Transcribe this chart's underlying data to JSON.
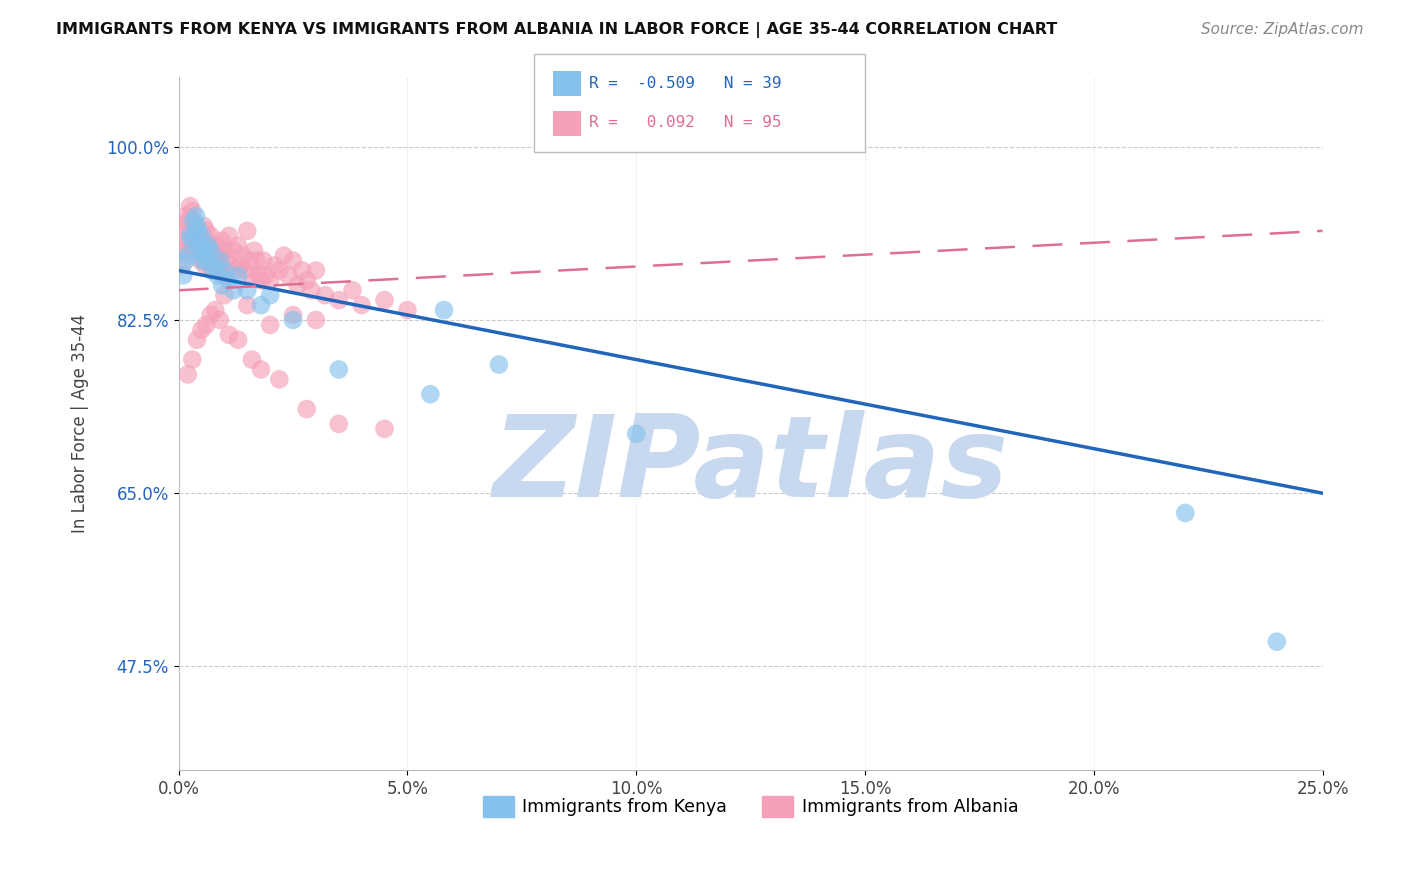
{
  "title": "IMMIGRANTS FROM KENYA VS IMMIGRANTS FROM ALBANIA IN LABOR FORCE | AGE 35-44 CORRELATION CHART",
  "source": "Source: ZipAtlas.com",
  "ylabel": "In Labor Force | Age 35-44",
  "x_tick_labels": [
    "0.0%",
    "5.0%",
    "10.0%",
    "15.0%",
    "20.0%",
    "25.0%"
  ],
  "x_tick_values": [
    0.0,
    5.0,
    10.0,
    15.0,
    20.0,
    25.0
  ],
  "y_tick_labels": [
    "47.5%",
    "65.0%",
    "82.5%",
    "100.0%"
  ],
  "y_tick_values": [
    47.5,
    65.0,
    82.5,
    100.0
  ],
  "xlim": [
    0.0,
    25.0
  ],
  "ylim": [
    37.0,
    107.0
  ],
  "kenya_color": "#85C1EC",
  "albania_color": "#F5A0B8",
  "kenya_line_color": "#2266BB",
  "albania_line_color": "#DD7090",
  "watermark_text": "ZIPatlas",
  "watermark_color": "#C8D8EE",
  "kenya_line_x0": 0.0,
  "kenya_line_y0": 87.5,
  "kenya_line_x1": 25.0,
  "kenya_line_y1": 65.0,
  "albania_line_x0": 0.0,
  "albania_line_y0": 85.5,
  "albania_line_x1": 25.0,
  "albania_line_y1": 91.5,
  "kenya_scatter_x": [
    0.1,
    0.15,
    0.2,
    0.25,
    0.3,
    0.32,
    0.35,
    0.38,
    0.4,
    0.42,
    0.45,
    0.48,
    0.5,
    0.52,
    0.55,
    0.58,
    0.6,
    0.65,
    0.7,
    0.75,
    0.8,
    0.85,
    0.9,
    0.95,
    1.0,
    1.1,
    1.2,
    1.3,
    1.5,
    1.8,
    2.0,
    2.5,
    3.5,
    5.5,
    5.8,
    7.0,
    10.0,
    22.0,
    24.0
  ],
  "kenya_scatter_y": [
    87.0,
    88.5,
    89.0,
    91.0,
    90.5,
    92.5,
    91.0,
    93.0,
    92.0,
    91.5,
    90.0,
    89.5,
    91.0,
    88.5,
    90.0,
    89.0,
    88.5,
    90.0,
    89.5,
    87.5,
    88.0,
    87.0,
    88.5,
    86.0,
    87.5,
    86.5,
    85.5,
    87.0,
    85.5,
    84.0,
    85.0,
    82.5,
    77.5,
    75.0,
    83.5,
    78.0,
    71.0,
    63.0,
    50.0
  ],
  "albania_scatter_x": [
    0.08,
    0.1,
    0.12,
    0.14,
    0.16,
    0.18,
    0.2,
    0.22,
    0.25,
    0.28,
    0.3,
    0.32,
    0.35,
    0.38,
    0.4,
    0.42,
    0.45,
    0.48,
    0.5,
    0.52,
    0.55,
    0.58,
    0.6,
    0.63,
    0.65,
    0.68,
    0.7,
    0.72,
    0.75,
    0.78,
    0.8,
    0.82,
    0.85,
    0.88,
    0.9,
    0.92,
    0.95,
    0.98,
    1.0,
    1.05,
    1.1,
    1.15,
    1.2,
    1.25,
    1.3,
    1.35,
    1.4,
    1.45,
    1.5,
    1.55,
    1.6,
    1.65,
    1.7,
    1.75,
    1.8,
    1.85,
    1.9,
    2.0,
    2.1,
    2.2,
    2.3,
    2.4,
    2.5,
    2.6,
    2.7,
    2.8,
    2.9,
    3.0,
    3.2,
    3.5,
    3.8,
    4.0,
    4.5,
    5.0,
    2.0,
    2.5,
    3.0,
    1.5,
    1.0,
    0.8,
    0.6,
    0.5,
    0.4,
    0.3,
    0.2,
    0.7,
    0.9,
    1.1,
    1.3,
    1.6,
    1.8,
    2.2,
    2.8,
    3.5,
    4.5
  ],
  "albania_scatter_y": [
    88.0,
    92.0,
    90.0,
    91.5,
    93.0,
    89.5,
    92.5,
    90.5,
    94.0,
    91.0,
    93.5,
    90.0,
    92.0,
    89.5,
    91.5,
    90.0,
    91.0,
    88.5,
    90.5,
    89.0,
    92.0,
    88.0,
    91.5,
    90.5,
    89.0,
    88.5,
    91.0,
    87.5,
    90.0,
    89.5,
    88.0,
    90.0,
    89.0,
    87.5,
    89.5,
    88.0,
    90.5,
    87.0,
    89.5,
    88.5,
    91.0,
    88.0,
    89.5,
    87.5,
    90.0,
    88.0,
    89.0,
    87.5,
    91.5,
    88.5,
    87.0,
    89.5,
    88.5,
    87.0,
    86.5,
    88.5,
    87.0,
    86.5,
    88.0,
    87.5,
    89.0,
    87.0,
    88.5,
    86.0,
    87.5,
    86.5,
    85.5,
    87.5,
    85.0,
    84.5,
    85.5,
    84.0,
    84.5,
    83.5,
    82.0,
    83.0,
    82.5,
    84.0,
    85.0,
    83.5,
    82.0,
    81.5,
    80.5,
    78.5,
    77.0,
    83.0,
    82.5,
    81.0,
    80.5,
    78.5,
    77.5,
    76.5,
    73.5,
    72.0,
    71.5
  ]
}
